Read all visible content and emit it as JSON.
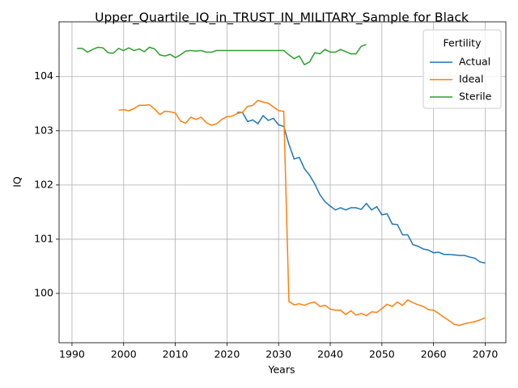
{
  "chart_data": {
    "type": "line",
    "title": "Upper_Quartile_IQ_in_TRUST_IN_MILITARY_Sample for Black",
    "x_label": "Years",
    "y_label": "IQ",
    "legend_title": "Fertility",
    "legend": "upper right",
    "grid": true,
    "xlim": [
      1987.5,
      2074
    ],
    "ylim": [
      99.09,
      105.01
    ],
    "xticks": [
      1990,
      2000,
      2010,
      2020,
      2030,
      2040,
      2050,
      2060,
      2070
    ],
    "yticks": [
      100,
      101,
      102,
      103,
      104
    ],
    "x": [
      1991,
      1992,
      1993,
      1994,
      1995,
      1996,
      1997,
      1998,
      1999,
      2000,
      2001,
      2002,
      2003,
      2004,
      2005,
      2006,
      2007,
      2008,
      2009,
      2010,
      2011,
      2012,
      2013,
      2014,
      2015,
      2016,
      2017,
      2018,
      2019,
      2020,
      2021,
      2022,
      2023,
      2024,
      2025,
      2026,
      2027,
      2028,
      2029,
      2030,
      2031,
      2032,
      2033,
      2034,
      2035,
      2036,
      2037,
      2038,
      2039,
      2040,
      2041,
      2042,
      2043,
      2044,
      2045,
      2046,
      2047,
      2048,
      2049,
      2050,
      2051,
      2052,
      2053,
      2054,
      2055,
      2056,
      2057,
      2058,
      2059,
      2060,
      2061,
      2062,
      2063,
      2064,
      2065,
      2066,
      2067,
      2068,
      2069,
      2070
    ],
    "series": [
      {
        "name": "Actual",
        "color": "#1f77b4",
        "values": [
          null,
          null,
          null,
          null,
          null,
          null,
          null,
          null,
          null,
          null,
          null,
          null,
          null,
          null,
          null,
          null,
          null,
          null,
          null,
          null,
          null,
          null,
          null,
          null,
          null,
          null,
          null,
          null,
          null,
          null,
          null,
          103.34,
          103.34,
          103.17,
          103.2,
          103.13,
          103.28,
          103.19,
          103.23,
          103.11,
          103.08,
          102.75,
          102.48,
          102.51,
          102.3,
          102.18,
          102.02,
          101.82,
          101.69,
          101.61,
          101.54,
          101.58,
          101.54,
          101.58,
          101.58,
          101.55,
          101.66,
          101.54,
          101.6,
          101.45,
          101.47,
          101.28,
          101.27,
          101.08,
          101.08,
          100.9,
          100.87,
          100.82,
          100.8,
          100.75,
          100.76,
          100.72,
          100.72,
          100.71,
          100.7,
          100.7,
          100.67,
          100.65,
          100.58,
          100.56
        ]
      },
      {
        "name": "Ideal",
        "color": "#ff7f0e",
        "values": [
          null,
          null,
          null,
          null,
          null,
          null,
          null,
          null,
          103.38,
          103.39,
          103.37,
          103.41,
          103.47,
          103.47,
          103.48,
          103.4,
          103.3,
          103.36,
          103.35,
          103.33,
          103.18,
          103.14,
          103.25,
          103.21,
          103.25,
          103.15,
          103.1,
          103.13,
          103.21,
          103.26,
          103.27,
          103.32,
          103.34,
          103.45,
          103.47,
          103.56,
          103.53,
          103.51,
          103.44,
          103.37,
          103.36,
          99.85,
          99.79,
          99.81,
          99.78,
          99.82,
          99.84,
          99.76,
          99.78,
          99.71,
          99.69,
          99.69,
          99.61,
          99.68,
          99.6,
          99.63,
          99.59,
          99.66,
          99.65,
          99.72,
          99.8,
          99.76,
          99.84,
          99.78,
          99.88,
          99.83,
          99.79,
          99.76,
          99.7,
          99.69,
          99.63,
          99.56,
          99.5,
          99.43,
          99.41,
          99.44,
          99.46,
          99.48,
          99.51,
          99.55
        ]
      },
      {
        "name": "Sterile",
        "color": "#2ca02c",
        "values": [
          104.52,
          104.52,
          104.45,
          104.5,
          104.54,
          104.53,
          104.44,
          104.43,
          104.52,
          104.48,
          104.53,
          104.48,
          104.51,
          104.46,
          104.54,
          104.51,
          104.4,
          104.38,
          104.41,
          104.35,
          104.4,
          104.47,
          104.48,
          104.47,
          104.48,
          104.45,
          104.45,
          104.48,
          104.48,
          104.48,
          104.48,
          104.48,
          104.48,
          104.48,
          104.48,
          104.48,
          104.48,
          104.48,
          104.48,
          104.48,
          104.48,
          104.4,
          104.33,
          104.38,
          104.22,
          104.27,
          104.44,
          104.42,
          104.5,
          104.45,
          104.45,
          104.5,
          104.46,
          104.42,
          104.42,
          104.56,
          104.59,
          null,
          null,
          null,
          null,
          null,
          null,
          null,
          null,
          null,
          null,
          null,
          null,
          null,
          null,
          null,
          null,
          null,
          null,
          null,
          null,
          null,
          null,
          null
        ]
      }
    ]
  }
}
